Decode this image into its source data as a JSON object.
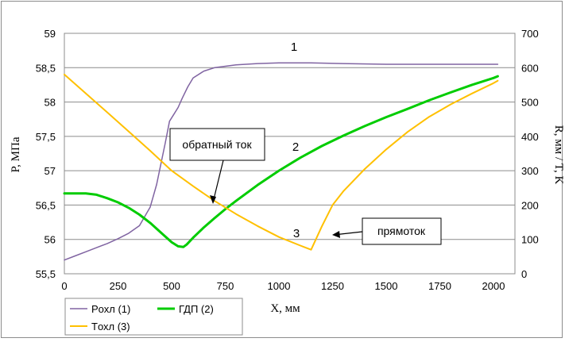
{
  "chart_data": {
    "type": "line",
    "xlabel": "X, мм",
    "ylabel_left": "P, МПа",
    "ylabel_right": "R, мм  /  T, K",
    "xlim": [
      0,
      2100
    ],
    "ylim_left": [
      55.5,
      59
    ],
    "ylim_right": [
      0,
      700
    ],
    "x_ticks": [
      0,
      250,
      500,
      750,
      1000,
      1250,
      1500,
      1750,
      2000
    ],
    "x_tick_labels": [
      "0",
      "250",
      "500",
      "750",
      "1000",
      "1250",
      "1500",
      "1750",
      "2000"
    ],
    "y_left_ticks": [
      55.5,
      56,
      56.5,
      57,
      57.5,
      58,
      58.5,
      59
    ],
    "y_left_tick_labels": [
      "55,5",
      "56",
      "56,5",
      "57",
      "57,5",
      "58",
      "58,5",
      "59"
    ],
    "y_right_ticks": [
      0,
      100,
      200,
      300,
      400,
      500,
      600,
      700
    ],
    "y_right_tick_labels": [
      "0",
      "100",
      "200",
      "300",
      "400",
      "500",
      "600",
      "700"
    ],
    "grid": "horizontal",
    "legend_position": "bottom-left",
    "series": [
      {
        "name": "Pохл (1)",
        "label": "1",
        "color": "#8064a2",
        "axis": "left",
        "points": [
          [
            0,
            55.7
          ],
          [
            50,
            55.76
          ],
          [
            100,
            55.82
          ],
          [
            150,
            55.88
          ],
          [
            200,
            55.94
          ],
          [
            250,
            56.01
          ],
          [
            300,
            56.09
          ],
          [
            350,
            56.2
          ],
          [
            400,
            56.47
          ],
          [
            430,
            56.8
          ],
          [
            450,
            57.1
          ],
          [
            470,
            57.4
          ],
          [
            490,
            57.72
          ],
          [
            510,
            57.82
          ],
          [
            530,
            57.92
          ],
          [
            550,
            58.06
          ],
          [
            575,
            58.22
          ],
          [
            600,
            58.35
          ],
          [
            650,
            58.45
          ],
          [
            700,
            58.5
          ],
          [
            800,
            58.54
          ],
          [
            900,
            58.56
          ],
          [
            1000,
            58.57
          ],
          [
            1150,
            58.57
          ],
          [
            1300,
            58.56
          ],
          [
            1500,
            58.55
          ],
          [
            2000,
            58.55
          ],
          [
            2020,
            58.55
          ]
        ]
      },
      {
        "name": "ГДП (2)",
        "label": "2",
        "color": "#00cc00",
        "axis": "right",
        "points": [
          [
            0,
            234
          ],
          [
            100,
            234
          ],
          [
            150,
            230
          ],
          [
            200,
            220
          ],
          [
            250,
            208
          ],
          [
            300,
            192
          ],
          [
            350,
            172
          ],
          [
            400,
            148
          ],
          [
            450,
            120
          ],
          [
            500,
            92
          ],
          [
            530,
            80
          ],
          [
            555,
            78
          ],
          [
            570,
            85
          ],
          [
            600,
            105
          ],
          [
            650,
            135
          ],
          [
            700,
            162
          ],
          [
            750,
            188
          ],
          [
            800,
            212
          ],
          [
            900,
            258
          ],
          [
            1000,
            300
          ],
          [
            1100,
            338
          ],
          [
            1200,
            372
          ],
          [
            1300,
            402
          ],
          [
            1400,
            430
          ],
          [
            1500,
            456
          ],
          [
            1600,
            480
          ],
          [
            1700,
            505
          ],
          [
            1800,
            528
          ],
          [
            1900,
            550
          ],
          [
            2000,
            570
          ],
          [
            2020,
            575
          ]
        ]
      },
      {
        "name": "Tохл (3)",
        "label": "3",
        "color": "#ffc000",
        "axis": "right",
        "points": [
          [
            0,
            580
          ],
          [
            100,
            525
          ],
          [
            200,
            470
          ],
          [
            300,
            414
          ],
          [
            400,
            358
          ],
          [
            500,
            300
          ],
          [
            600,
            255
          ],
          [
            700,
            212
          ],
          [
            800,
            174
          ],
          [
            900,
            139
          ],
          [
            1000,
            107
          ],
          [
            1100,
            82
          ],
          [
            1150,
            70
          ],
          [
            1200,
            138
          ],
          [
            1250,
            200
          ],
          [
            1300,
            240
          ],
          [
            1400,
            305
          ],
          [
            1500,
            362
          ],
          [
            1600,
            413
          ],
          [
            1700,
            457
          ],
          [
            1800,
            493
          ],
          [
            1900,
            525
          ],
          [
            2000,
            555
          ],
          [
            2020,
            562
          ]
        ]
      }
    ],
    "annotations": [
      {
        "text": "обратный ток",
        "points_to": [
          700,
          195
        ]
      },
      {
        "text": "прямоток",
        "points_to": [
          1235,
          115
        ]
      }
    ]
  }
}
